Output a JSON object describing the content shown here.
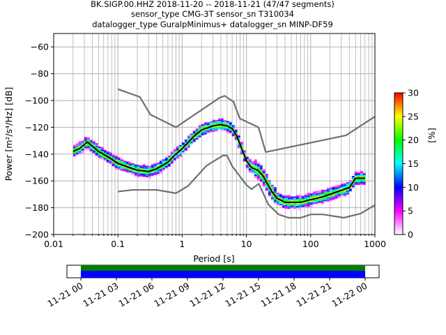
{
  "chart_data": {
    "type": "heatmap",
    "title": [
      "BK.SIGP.00.HHZ   2018-11-20 -- 2018-11-21  (47/47 segments)",
      "sensor_type CMG-3T sensor_sn T310034",
      "datalogger_type GuralpMinimus+ datalogger_sn MINP-DF59"
    ],
    "xlabel": "Period [s]",
    "ylabel": "Power [m²/s⁴/Hz] [dB]",
    "xscale": "log",
    "xlim": [
      0.01,
      1000
    ],
    "ylim": [
      -200,
      -50
    ],
    "xticks": [
      0.01,
      0.1,
      1,
      10,
      100,
      1000
    ],
    "xtick_labels": [
      "0.01",
      "0.1",
      "1",
      "10",
      "100",
      "1000"
    ],
    "yticks": [
      -200,
      -180,
      -160,
      -140,
      -120,
      -100,
      -80,
      -60
    ],
    "grid": true,
    "colorbar": {
      "label": "[%]",
      "min": 0,
      "max": 30,
      "ticks": [
        0,
        5,
        10,
        15,
        20,
        25,
        30
      ],
      "colormap": [
        "#ffffff",
        "#ff00ff",
        "#0000ff",
        "#00ffff",
        "#00ff00",
        "#ffff00",
        "#ff0000"
      ]
    },
    "series": [
      {
        "role": "mean",
        "color": "#000000",
        "x": [
          0.02,
          0.025,
          0.03,
          0.033,
          0.04,
          0.05,
          0.07,
          0.1,
          0.15,
          0.2,
          0.3,
          0.4,
          0.6,
          0.8,
          1,
          1.5,
          2,
          3,
          4,
          5,
          6,
          7,
          8,
          10,
          12,
          15,
          18,
          20,
          25,
          30,
          40,
          50,
          70,
          100,
          150,
          200,
          300,
          400,
          500,
          700
        ],
        "y": [
          -138,
          -136,
          -133,
          -131,
          -134,
          -138,
          -142,
          -147,
          -150,
          -152,
          -153,
          -151,
          -146,
          -140,
          -136,
          -127,
          -122,
          -119,
          -118,
          -119,
          -121,
          -126,
          -133,
          -145,
          -150,
          -152,
          -156,
          -160,
          -168,
          -173,
          -176,
          -176,
          -176,
          -174,
          -172,
          -170,
          -167,
          -165,
          -158,
          -158
        ]
      },
      {
        "role": "low_noise_model",
        "color": "#6e6e6e",
        "x": [
          0.1,
          0.17,
          0.4,
          0.8,
          1.24,
          2.4,
          4.3,
          5,
          6,
          10,
          12,
          15.6,
          21.9,
          31.6,
          45,
          70,
          101,
          154,
          328,
          600,
          1000
        ],
        "y": [
          -168,
          -166.7,
          -166.7,
          -169.2,
          -163.7,
          -148.6,
          -141.1,
          -141.1,
          -149,
          -163,
          -166.2,
          -162.1,
          -177.5,
          -185,
          -187.5,
          -187.5,
          -185,
          -185,
          -187.5,
          -184.4,
          -178
        ]
      },
      {
        "role": "high_noise_model",
        "color": "#6e6e6e",
        "x": [
          0.1,
          0.22,
          0.32,
          0.8,
          3.8,
          4.6,
          6.3,
          7.9,
          15.4,
          20,
          354.8,
          1000
        ],
        "y": [
          -91.5,
          -97.4,
          -110.5,
          -120,
          -98,
          -96.5,
          -101,
          -113.5,
          -120,
          -138.5,
          -126,
          -112
        ]
      }
    ]
  },
  "timeline": {
    "tick_labels": [
      "11-21 00",
      "11-21 03",
      "11-21 06",
      "11-21 09",
      "11-21 12",
      "11-21 15",
      "11-21 18",
      "11-21 21",
      "11-22 00"
    ],
    "coverage_colors": [
      "#008000",
      "#0000ff"
    ]
  }
}
